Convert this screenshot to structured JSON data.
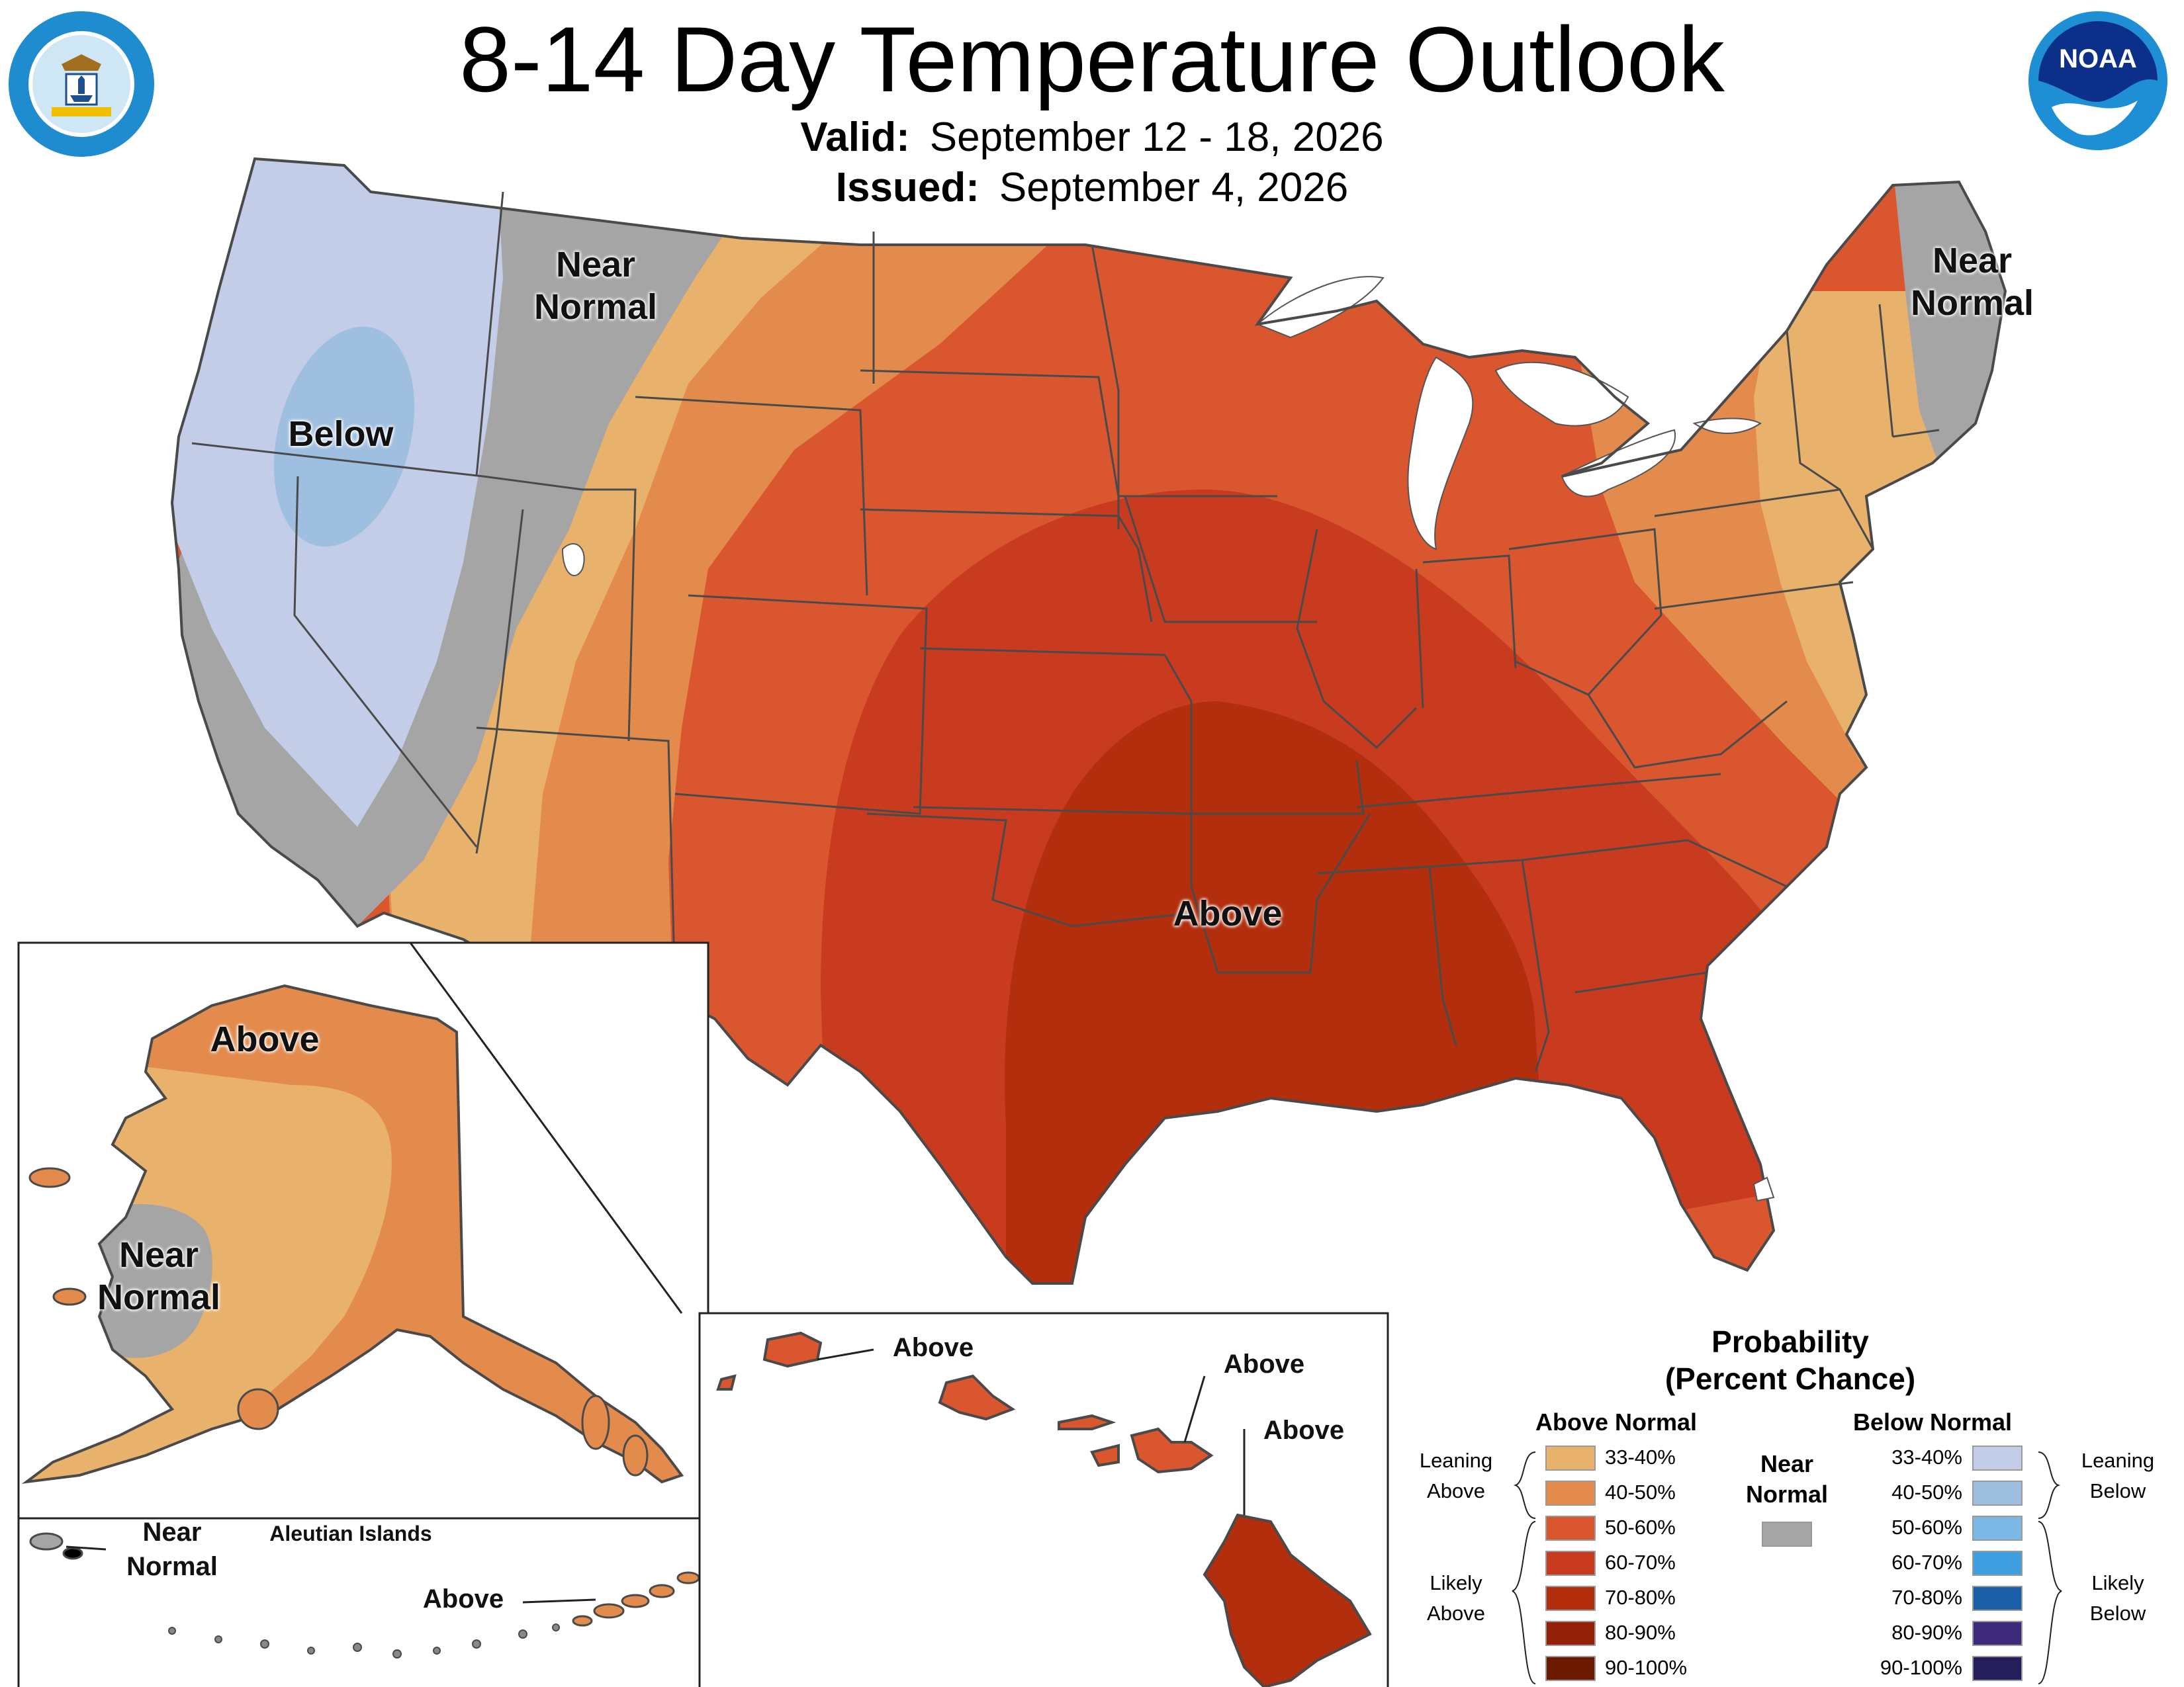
{
  "header": {
    "title": "8-14 Day Temperature Outlook",
    "valid_label": "Valid:",
    "valid_value": "September 12 - 18, 2026",
    "issued_label": "Issued:",
    "issued_value": "September 4, 2026"
  },
  "logos": {
    "commerce_seal": "DEPARTMENT OF COMMERCE · UNITED STATES OF AMERICA",
    "noaa": "NOAA"
  },
  "colors": {
    "near_normal": "#a5a5a5",
    "above_33_40": "#e8b16c",
    "above_40_50": "#e38b4d",
    "above_50_60": "#d9562f",
    "above_60_70": "#c83b1e",
    "above_70_80": "#b22e0c",
    "above_80_90": "#932007",
    "above_90_100": "#6b1a00",
    "below_33_40": "#c3cde8",
    "below_40_50": "#9fbfe0",
    "below_50_60": "#7cb8e6",
    "below_60_70": "#3f9fe0",
    "below_70_80": "#1a5fa8",
    "below_80_90": "#3d2a7a",
    "below_90_100": "#241e5a"
  },
  "map_labels": {
    "conus_below": "Below",
    "conus_near_normal_west": "Near Normal",
    "conus_near_normal_ne": "Near Normal",
    "conus_above": "Above",
    "alaska_above": "Above",
    "alaska_near_normal": "Near Normal",
    "aleutian_title": "Aleutian Islands",
    "aleutian_near_normal": "Near Normal",
    "aleutian_above": "Above",
    "hawaii_above_1": "Above",
    "hawaii_above_2": "Above",
    "hawaii_above_3": "Above"
  },
  "legend": {
    "title_line1": "Probability",
    "title_line2": "(Percent Chance)",
    "above_header": "Above Normal",
    "below_header": "Below Normal",
    "near_normal": "Near Normal",
    "leaning_above": "Leaning Above",
    "likely_above": "Likely Above",
    "leaning_below": "Leaning Below",
    "likely_below": "Likely Below",
    "ranges": [
      "33-40%",
      "40-50%",
      "50-60%",
      "60-70%",
      "70-80%",
      "80-90%",
      "90-100%"
    ]
  }
}
